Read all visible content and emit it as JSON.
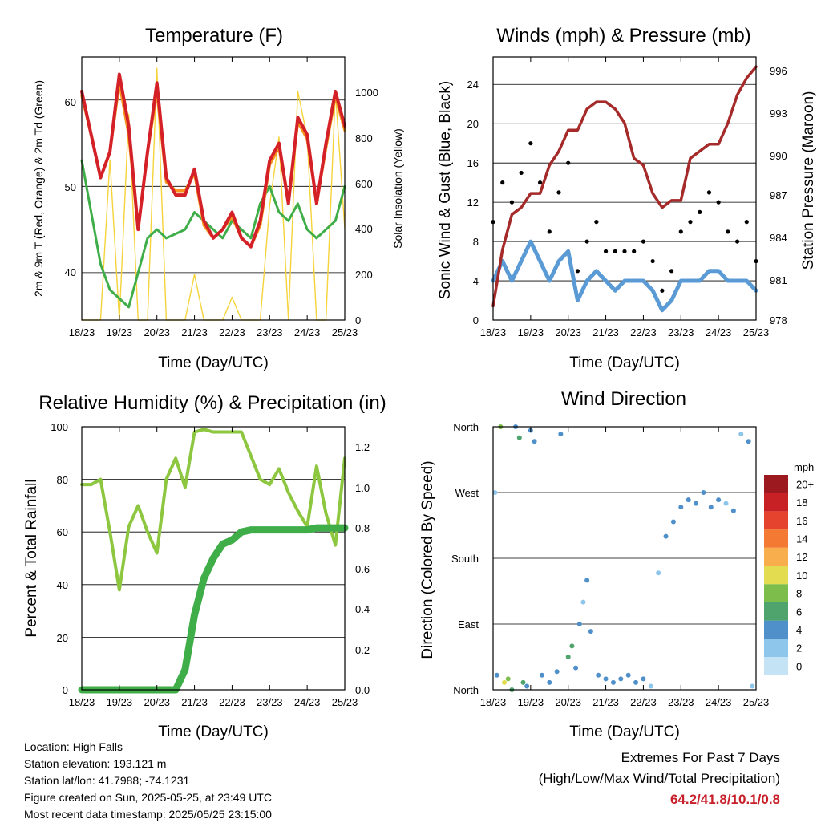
{
  "panels": {
    "temperature": {
      "title": "Temperature (F)",
      "xlabel": "Time (Day/UTC)",
      "ylabel_left": "2m & 9m T (Red, Orange) & 2m Td (Green)",
      "ylabel_right": "Solar Insolation (Yellow)",
      "ylim_left": [
        34.5,
        65
      ],
      "ylim_right": [
        0,
        1150
      ],
      "yticks_left": [
        "40",
        "50",
        "60"
      ],
      "yticks_right": [
        "0",
        "200",
        "400",
        "600",
        "800",
        "1000"
      ]
    },
    "winds": {
      "title": "Winds (mph) & Pressure (mb)",
      "xlabel": "Time (Day/UTC)",
      "ylabel_left": "Sonic Wind & Gust (Blue, Black)",
      "ylabel_right": "Station Pressure (Maroon)",
      "ylim_left": [
        0,
        26.8
      ],
      "ylim_right": [
        978,
        996.7
      ],
      "yticks_left": [
        "0",
        "4",
        "8",
        "12",
        "16",
        "20",
        "24"
      ],
      "yticks_right": [
        "978",
        "981",
        "984",
        "987",
        "990",
        "993",
        "996"
      ]
    },
    "humidity": {
      "title": "Relative Humidity (%) & Precipitation (in)",
      "xlabel": "Time (Day/UTC)",
      "ylabel_left": "Percent & Total Rainfall",
      "ylim_left": [
        0,
        100
      ],
      "ylim_right": [
        0,
        1.3
      ],
      "yticks_left": [
        "0",
        "20",
        "40",
        "60",
        "80",
        "100"
      ],
      "yticks_right": [
        "0.0",
        "0.2",
        "0.4",
        "0.6",
        "0.8",
        "1.0",
        "1.2"
      ]
    },
    "direction": {
      "title": "Wind Direction",
      "xlabel": "Time (Day/UTC)",
      "ylabel_left": "Direction (Colored By Speed)",
      "yticks_left": [
        "North",
        "East",
        "South",
        "West",
        "North"
      ],
      "legend_title": "mph",
      "legend_labels": [
        "0",
        "2",
        "4",
        "6",
        "8",
        "10",
        "12",
        "14",
        "16",
        "18",
        "20+"
      ],
      "legend_colors": [
        "#c4e4f5",
        "#8ec5ea",
        "#4f8fca",
        "#4fa46e",
        "#7dbd4b",
        "#e4dc50",
        "#f8ae4c",
        "#f47a34",
        "#e5432d",
        "#c72126",
        "#9c1a1f"
      ]
    }
  },
  "x_ticks": [
    "18/23",
    "19/23",
    "20/23",
    "21/23",
    "22/23",
    "23/23",
    "24/23",
    "25/23"
  ],
  "chart_data": [
    {
      "type": "line",
      "title": "Temperature (F)",
      "xlabel": "Time (Day/UTC)",
      "ylabel": "2m & 9m T (Red, Orange) & 2m Td (Green)",
      "x": [
        0,
        0.25,
        0.5,
        0.75,
        1.0,
        1.25,
        1.5,
        1.75,
        2.0,
        2.25,
        2.5,
        2.75,
        3.0,
        3.25,
        3.5,
        3.75,
        4.0,
        4.25,
        4.5,
        4.75,
        5.0,
        5.25,
        5.5,
        5.75,
        6.0,
        6.25,
        6.5,
        6.75,
        7.0
      ],
      "series": [
        {
          "name": "2m T",
          "color": "#d42027",
          "values": [
            61,
            56,
            51,
            54,
            63,
            57,
            45,
            54,
            62,
            51,
            49,
            49,
            52,
            46,
            44,
            45,
            47,
            44,
            43,
            46,
            53,
            55,
            48,
            58,
            56,
            48,
            55,
            61,
            57
          ]
        },
        {
          "name": "9m T",
          "color": "#f7941d",
          "values": [
            60.5,
            56,
            51,
            54,
            62,
            56,
            45,
            54,
            61,
            50.5,
            49.5,
            49.5,
            51.5,
            45.5,
            44,
            45,
            46.5,
            44,
            43,
            45.5,
            52.5,
            54.5,
            48,
            57.5,
            55.5,
            48,
            54.5,
            60.5,
            56.5
          ]
        },
        {
          "name": "2m Td",
          "color": "#3fae49",
          "values": [
            53,
            47,
            41,
            38,
            37,
            36,
            40,
            44,
            45,
            44,
            44.5,
            45,
            47,
            46,
            45,
            44,
            46,
            45,
            44,
            48,
            50,
            47,
            46,
            48,
            45,
            44,
            45,
            46,
            50
          ]
        },
        {
          "name": "Solar Insolation",
          "color": "#f5d33b",
          "axis": "right",
          "values": [
            0,
            0,
            0,
            700,
            0,
            900,
            0,
            0,
            1100,
            0,
            0,
            0,
            200,
            0,
            0,
            0,
            100,
            0,
            0,
            0,
            500,
            800,
            0,
            1000,
            800,
            0,
            0,
            1000,
            400
          ]
        }
      ]
    },
    {
      "type": "line",
      "title": "Winds (mph) & Pressure (mb)",
      "xlabel": "Time (Day/UTC)",
      "ylabel": "Sonic Wind & Gust (Blue, Black)",
      "x": [
        0,
        0.25,
        0.5,
        0.75,
        1.0,
        1.25,
        1.5,
        1.75,
        2.0,
        2.25,
        2.5,
        2.75,
        3.0,
        3.25,
        3.5,
        3.75,
        4.0,
        4.25,
        4.5,
        4.75,
        5.0,
        5.25,
        5.5,
        5.75,
        6.0,
        6.25,
        6.5,
        6.75,
        7.0
      ],
      "series": [
        {
          "name": "Sonic Wind",
          "color": "#5b9bd5",
          "values": [
            4,
            6,
            4,
            6,
            8,
            6,
            4,
            6,
            7,
            2,
            4,
            5,
            4,
            3,
            4,
            4,
            4,
            3,
            1,
            2,
            4,
            4,
            4,
            5,
            5,
            4,
            4,
            4,
            3
          ]
        },
        {
          "name": "Gust",
          "color": "#000000",
          "values": [
            10,
            14,
            12,
            15,
            18,
            14,
            9,
            13,
            16,
            5,
            8,
            10,
            7,
            7,
            7,
            7,
            8,
            6,
            3,
            5,
            9,
            10,
            11,
            13,
            12,
            9,
            8,
            10,
            6
          ]
        },
        {
          "name": "Station Pressure",
          "color": "#a52a2a",
          "axis": "right",
          "values": [
            979,
            983,
            985.5,
            986,
            987,
            987,
            989,
            990,
            991.5,
            991.5,
            993,
            993.5,
            993.5,
            993,
            992,
            989.5,
            989,
            987,
            986,
            986.5,
            986.5,
            989.5,
            990,
            990.5,
            990.5,
            992,
            994,
            995.2,
            996
          ]
        }
      ]
    },
    {
      "type": "line",
      "title": "Relative Humidity (%) & Precipitation (in)",
      "xlabel": "Time (Day/UTC)",
      "ylabel": "Percent & Total Rainfall",
      "x": [
        0,
        0.25,
        0.5,
        0.75,
        1.0,
        1.25,
        1.5,
        1.75,
        2.0,
        2.25,
        2.5,
        2.75,
        3.0,
        3.25,
        3.5,
        3.75,
        4.0,
        4.25,
        4.5,
        4.75,
        5.0,
        5.25,
        5.5,
        5.75,
        6.0,
        6.25,
        6.5,
        6.75,
        7.0
      ],
      "series": [
        {
          "name": "Relative Humidity",
          "color": "#8dc63f",
          "values": [
            78,
            78,
            80,
            60,
            38,
            62,
            70,
            60,
            52,
            80,
            88,
            77,
            98,
            99,
            98,
            98,
            98,
            98,
            89,
            80,
            78,
            84,
            75,
            68,
            62,
            85,
            67,
            55,
            88
          ]
        },
        {
          "name": "Total Precipitation",
          "color": "#3fae49",
          "axis": "right",
          "values": [
            0,
            0,
            0,
            0,
            0,
            0,
            0,
            0,
            0,
            0,
            0,
            0.1,
            0.37,
            0.55,
            0.65,
            0.72,
            0.74,
            0.78,
            0.79,
            0.79,
            0.79,
            0.79,
            0.79,
            0.79,
            0.79,
            0.8,
            0.8,
            0.8,
            0.8
          ]
        }
      ]
    },
    {
      "type": "scatter",
      "title": "Wind Direction",
      "xlabel": "Time (Day/UTC)",
      "ylabel": "Direction (Colored By Speed)",
      "y_categories": [
        "North",
        "East",
        "South",
        "West",
        "North"
      ],
      "series": [
        {
          "name": "Direction (deg)",
          "x": [
            0.05,
            0.1,
            0.2,
            0.3,
            0.4,
            0.5,
            0.6,
            0.7,
            0.8,
            0.9,
            1.0,
            1.1,
            1.3,
            1.5,
            1.7,
            1.8,
            2.0,
            2.1,
            2.2,
            2.3,
            2.4,
            2.5,
            2.6,
            2.8,
            3.0,
            3.2,
            3.4,
            3.6,
            3.8,
            4.0,
            4.2,
            4.4,
            4.6,
            4.8,
            5.0,
            5.2,
            5.4,
            5.6,
            5.8,
            6.0,
            6.2,
            6.4,
            6.6,
            6.8,
            6.9
          ],
          "y": [
            270,
            20,
            360,
            10,
            15,
            0,
            360,
            345,
            10,
            5,
            355,
            340,
            20,
            10,
            25,
            350,
            45,
            60,
            30,
            90,
            120,
            150,
            80,
            20,
            15,
            10,
            15,
            20,
            10,
            15,
            5,
            160,
            210,
            230,
            250,
            260,
            255,
            270,
            250,
            260,
            255,
            245,
            350,
            340,
            5
          ],
          "speed": [
            2,
            3,
            8,
            9,
            7,
            6,
            4,
            5,
            5,
            3,
            4,
            3,
            4,
            3,
            4,
            3,
            5,
            6,
            4,
            3,
            2,
            4,
            3,
            4,
            4,
            3,
            3,
            3,
            4,
            3,
            1,
            1,
            4,
            3,
            4,
            4,
            3,
            4,
            3,
            4,
            2,
            3,
            2,
            3,
            2
          ]
        }
      ]
    }
  ],
  "info": {
    "location": "Location: High Falls",
    "elevation": "Station elevation: 193.121 m",
    "latlon": "Station lat/lon: 41.7988; -74.1231",
    "created": "Figure created on Sun, 2025-05-25, at 23:49 UTC",
    "recent": "Most recent data timestamp: 2025/05/25 23:15:00"
  },
  "extremes": {
    "title": "Extremes For Past 7 Days",
    "subtitle": "(High/Low/Max Wind/Total Precipitation)",
    "values": "64.2/41.8/10.1/0.8"
  }
}
